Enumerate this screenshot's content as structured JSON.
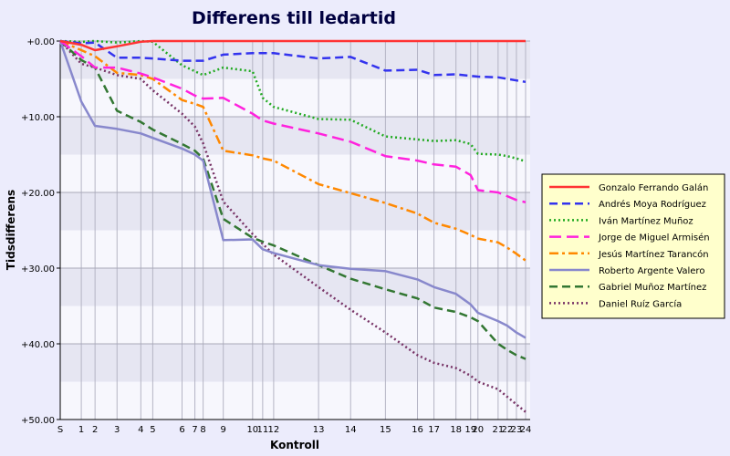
{
  "chart_data": {
    "type": "line",
    "title": "Differens till ledartid",
    "xlabel": "Kontroll",
    "ylabel": "Tidsdifferens",
    "categories": [
      "S",
      "1",
      "2",
      "3",
      "4",
      "5",
      "6",
      "7",
      "8",
      "9",
      "10",
      "11",
      "12",
      "13",
      "14",
      "15",
      "16",
      "17",
      "18",
      "19",
      "20",
      "21",
      "22",
      "23",
      "24"
    ],
    "x": [
      0,
      23,
      38,
      62,
      88,
      101,
      133,
      147,
      156,
      178,
      210,
      221,
      233,
      282,
      317,
      355,
      390,
      408,
      432,
      448,
      456,
      478,
      488,
      498,
      508
    ],
    "xlim": [
      0,
      513
    ],
    "ylim": [
      0,
      50
    ],
    "y_tick_values": [
      0,
      10,
      20,
      30,
      40,
      50
    ],
    "y_tick_labels": [
      "+0.00",
      "+10.00",
      "+20.00",
      "+30.00",
      "+40.00",
      "+50.00"
    ],
    "y_inverted": true,
    "grid": true,
    "legend_position": "right",
    "series": [
      {
        "name": "Gonzalo Ferrando Galán",
        "color": "#ff3333",
        "dash": "solid",
        "values": [
          0,
          0.5,
          1.2,
          0.7,
          0.1,
          0,
          0,
          0,
          0,
          0,
          0,
          0,
          0,
          0,
          0,
          0,
          0,
          0,
          0,
          0,
          0,
          0,
          0,
          0,
          0
        ]
      },
      {
        "name": "Andrés Moya Rodríguez",
        "color": "#3333ee",
        "dash": "dash",
        "values": [
          0,
          0.3,
          0.2,
          2.2,
          2.2,
          2.3,
          2.6,
          2.6,
          2.6,
          1.8,
          1.6,
          1.6,
          1.6,
          2.3,
          2.1,
          3.9,
          3.8,
          4.5,
          4.4,
          4.6,
          4.7,
          4.8,
          5.0,
          5.2,
          5.4
        ]
      },
      {
        "name": "Iván Martínez Muñoz",
        "color": "#22aa22",
        "dash": "dot",
        "values": [
          0,
          0.1,
          0,
          0.2,
          0,
          0.1,
          3.2,
          4.0,
          4.5,
          3.5,
          4.0,
          7.5,
          8.7,
          10.3,
          10.4,
          12.6,
          13.0,
          13.2,
          13.1,
          13.6,
          14.9,
          15.0,
          15.2,
          15.5,
          15.9
        ]
      },
      {
        "name": "Jorge de Miguel Armisén",
        "color": "#ff22dd",
        "dash": "longdash",
        "values": [
          0,
          2.0,
          3.5,
          3.5,
          4.3,
          4.8,
          6.3,
          7.2,
          7.6,
          7.5,
          9.6,
          10.5,
          10.9,
          12.2,
          13.3,
          15.2,
          15.8,
          16.3,
          16.6,
          17.7,
          19.7,
          20.0,
          20.5,
          21.0,
          21.3
        ]
      },
      {
        "name": "Jesús Martínez Tarancón",
        "color": "#ff8800",
        "dash": "dashdot",
        "values": [
          0,
          1.2,
          2.0,
          4.2,
          4.5,
          5.0,
          7.8,
          8.3,
          8.7,
          14.5,
          15.1,
          15.5,
          15.8,
          18.9,
          20.1,
          21.4,
          22.8,
          24.0,
          24.8,
          25.6,
          26.1,
          26.6,
          27.3,
          28.1,
          29.0
        ]
      },
      {
        "name": "Roberto Argente Valero",
        "color": "#8888cc",
        "dash": "solid",
        "values": [
          0,
          8.0,
          11.2,
          11.6,
          12.2,
          12.8,
          14.2,
          15.0,
          15.8,
          26.3,
          26.2,
          27.5,
          28.0,
          29.6,
          30.1,
          30.4,
          31.5,
          32.5,
          33.4,
          34.8,
          35.9,
          37.0,
          37.6,
          38.5,
          39.2
        ]
      },
      {
        "name": "Gabriel Muñoz Martínez",
        "color": "#337733",
        "dash": "dash",
        "values": [
          0,
          2.5,
          3.5,
          9.2,
          10.7,
          11.7,
          13.6,
          14.5,
          15.5,
          23.5,
          26.0,
          26.5,
          27.0,
          29.6,
          31.4,
          32.8,
          34.0,
          35.2,
          35.8,
          36.5,
          37.0,
          40.0,
          40.8,
          41.5,
          42.0
        ]
      },
      {
        "name": "Daniel Ruíz García",
        "color": "#773366",
        "dash": "dot",
        "values": [
          0,
          3.0,
          3.5,
          4.5,
          5.0,
          6.5,
          9.6,
          11.3,
          13.5,
          21.2,
          25.5,
          26.8,
          28.2,
          32.5,
          35.5,
          38.5,
          41.5,
          42.5,
          43.2,
          44.2,
          45.0,
          46.0,
          47.0,
          48.0,
          49.0
        ]
      }
    ]
  }
}
